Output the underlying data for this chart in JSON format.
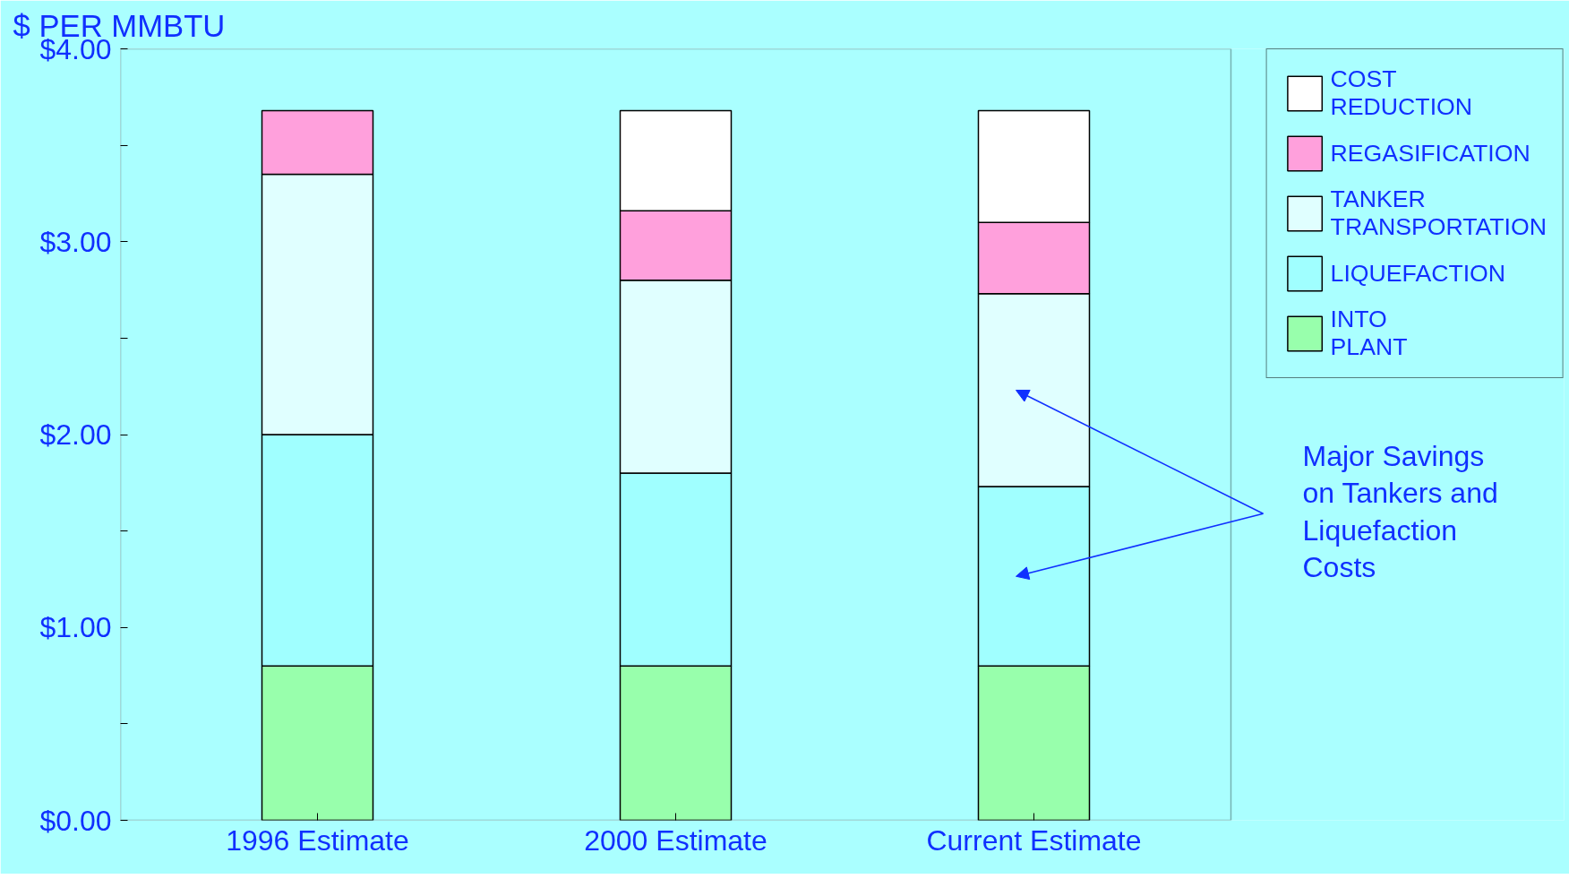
{
  "chart_data": {
    "type": "bar",
    "stacked": true,
    "title": "$ PER MMBTU",
    "categories": [
      "1996 Estimate",
      "2000 Estimate",
      "Current Estimate"
    ],
    "series": [
      {
        "name": "INTO\nPLANT",
        "color": "#98ffac",
        "values": [
          0.8,
          0.8,
          0.8
        ]
      },
      {
        "name": "LIQUEFACTION",
        "color": "#a0ffff",
        "values": [
          1.2,
          1.0,
          0.93
        ]
      },
      {
        "name": "TANKER\nTRANSPORTATION",
        "color": "#e0ffff",
        "values": [
          1.35,
          1.0,
          1.0
        ]
      },
      {
        "name": "REGASIFICATION",
        "color": "#ffa0dc",
        "values": [
          0.33,
          0.36,
          0.37
        ]
      },
      {
        "name": "COST\nREDUCTION",
        "color": "#ffffff",
        "values": [
          null,
          0.52,
          0.58
        ]
      }
    ],
    "ylim": [
      0,
      4
    ],
    "yticks": [
      {
        "value": 0,
        "label": "$0.00"
      },
      {
        "value": 0.5,
        "label": null
      },
      {
        "value": 1,
        "label": "$1.00"
      },
      {
        "value": 1.5,
        "label": null
      },
      {
        "value": 2,
        "label": "$2.00"
      },
      {
        "value": 2.5,
        "label": null
      },
      {
        "value": 3,
        "label": "$3.00"
      },
      {
        "value": 3.5,
        "label": null
      },
      {
        "value": 4,
        "label": "$4.00"
      }
    ],
    "grid": false,
    "legend": "right",
    "annotations": [
      "Major Savings\non Tankers and\nLiquefaction\nCosts"
    ]
  }
}
